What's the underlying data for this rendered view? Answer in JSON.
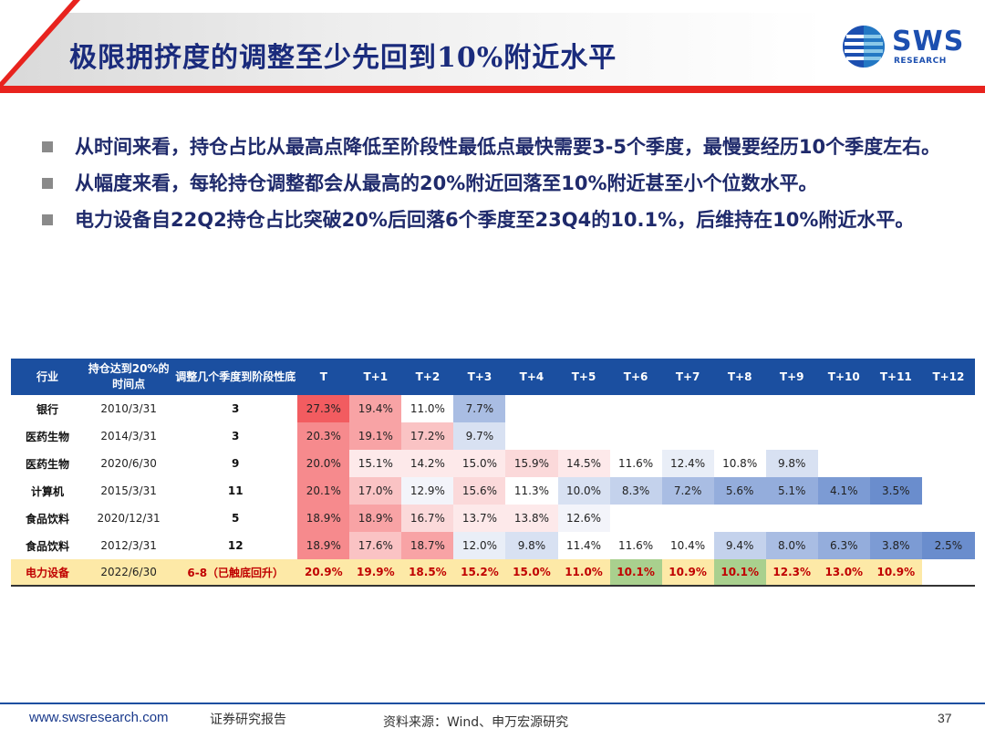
{
  "header": {
    "title": "极限拥挤度的调整至少先回到10%附近水平",
    "logo_text": "SWS",
    "logo_sub": "RESEARCH"
  },
  "bullets": [
    "从时间来看，持仓占比从最高点降低至阶段性最低点最快需要3-5个季度，最慢要经历10个季度左右。",
    "从幅度来看，每轮持仓调整都会从最高的20%附近回落至10%附近甚至小个位数水平。",
    "电力设备自22Q2持仓占比突破20%后回落6个季度至23Q4的10.1%，后维持在10%附近水平。"
  ],
  "table": {
    "headers": [
      "行业",
      "持仓达到20%的时间点",
      "调整几个季度到阶段性底",
      "T",
      "T+1",
      "T+2",
      "T+3",
      "T+4",
      "T+5",
      "T+6",
      "T+7",
      "T+8",
      "T+9",
      "T+10",
      "T+11",
      "T+12"
    ],
    "rows": [
      {
        "industry": "银行",
        "date": "2010/3/31",
        "quarters": "3",
        "values": [
          "27.3%",
          "19.4%",
          "11.0%",
          "7.7%",
          "",
          "",
          "",
          "",
          "",
          "",
          "",
          "",
          ""
        ]
      },
      {
        "industry": "医药生物",
        "date": "2014/3/31",
        "quarters": "3",
        "values": [
          "20.3%",
          "19.1%",
          "17.2%",
          "9.7%",
          "",
          "",
          "",
          "",
          "",
          "",
          "",
          "",
          ""
        ]
      },
      {
        "industry": "医药生物",
        "date": "2020/6/30",
        "quarters": "9",
        "values": [
          "20.0%",
          "15.1%",
          "14.2%",
          "15.0%",
          "15.9%",
          "14.5%",
          "11.6%",
          "12.4%",
          "10.8%",
          "9.8%",
          "",
          "",
          ""
        ]
      },
      {
        "industry": "计算机",
        "date": "2015/3/31",
        "quarters": "11",
        "values": [
          "20.1%",
          "17.0%",
          "12.9%",
          "15.6%",
          "11.3%",
          "10.0%",
          "8.3%",
          "7.2%",
          "5.6%",
          "5.1%",
          "4.1%",
          "3.5%",
          ""
        ]
      },
      {
        "industry": "食品饮料",
        "date": "2020/12/31",
        "quarters": "5",
        "values": [
          "18.9%",
          "18.9%",
          "16.7%",
          "13.7%",
          "13.8%",
          "12.6%",
          "",
          "",
          "",
          "",
          "",
          "",
          ""
        ]
      },
      {
        "industry": "食品饮料",
        "date": "2012/3/31",
        "quarters": "12",
        "values": [
          "18.9%",
          "17.6%",
          "18.7%",
          "12.0%",
          "9.8%",
          "11.4%",
          "11.6%",
          "10.4%",
          "9.4%",
          "8.0%",
          "6.3%",
          "3.8%",
          "2.5%"
        ]
      },
      {
        "industry": "电力设备",
        "date": "2022/6/30",
        "quarters": "6-8（已触底回升）",
        "values": [
          "20.9%",
          "19.9%",
          "18.5%",
          "15.2%",
          "15.0%",
          "11.0%",
          "10.1%",
          "10.9%",
          "10.1%",
          "12.3%",
          "13.0%",
          "10.9%",
          ""
        ]
      }
    ],
    "colors": {
      "header_bg": "#1b4fa0",
      "highlight_row_bg": "#fde9a7",
      "highlight_text": "#c00000",
      "min_cell_green": "#a9d08e"
    }
  },
  "footer": {
    "url": "www.swsresearch.com",
    "report": "证券研究报告",
    "source": "资料来源：Wind、申万宏源研究",
    "page": "37"
  }
}
